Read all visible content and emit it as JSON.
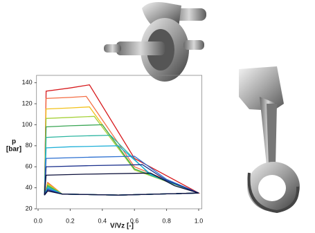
{
  "chart_data": {
    "type": "line",
    "xlabel": "V/Vz [-]",
    "ylabel": [
      "p",
      "[bar]"
    ],
    "xlim": [
      -0.01,
      1.02
    ],
    "ylim": [
      20,
      147
    ],
    "xticks": [
      {
        "value": 0,
        "label": "0.0"
      },
      0.2,
      0.4,
      0.6,
      0.8,
      {
        "value": 1,
        "label": "1.0"
      }
    ],
    "yticks": [
      20,
      40,
      60,
      80,
      100,
      120,
      140
    ],
    "series": [
      {
        "color": "#d7191c",
        "x": [
          0.04,
          0.05,
          0.2,
          0.32,
          0.6,
          1.0,
          0.5,
          0.15,
          0.06,
          0.04
        ],
        "values": [
          33,
          132,
          135,
          138,
          68,
          35,
          33,
          34,
          45,
          33
        ]
      },
      {
        "color": "#f46d43",
        "x": [
          0.04,
          0.05,
          0.2,
          0.3,
          0.6,
          1.0,
          0.5,
          0.15,
          0.06,
          0.04
        ],
        "values": [
          33,
          125,
          126,
          127,
          60,
          35,
          33,
          34,
          45,
          33
        ]
      },
      {
        "color": "#f2c21b",
        "x": [
          0.04,
          0.05,
          0.2,
          0.32,
          0.6,
          1.0,
          0.5,
          0.15,
          0.06,
          0.04
        ],
        "values": [
          33,
          115,
          116,
          117,
          58,
          35,
          33,
          34,
          44,
          33
        ]
      },
      {
        "color": "#a6d13a",
        "x": [
          0.04,
          0.05,
          0.2,
          0.35,
          0.6,
          1.0,
          0.5,
          0.15,
          0.06,
          0.04
        ],
        "values": [
          33,
          106,
          107,
          108,
          57,
          35,
          33,
          34,
          43,
          33
        ]
      },
      {
        "color": "#3aa655",
        "x": [
          0.04,
          0.05,
          0.2,
          0.4,
          0.6,
          1.0,
          0.5,
          0.15,
          0.06,
          0.04
        ],
        "values": [
          33,
          98,
          99,
          100,
          58,
          35,
          33,
          34,
          42,
          33
        ]
      },
      {
        "color": "#2bb5a0",
        "x": [
          0.04,
          0.05,
          0.2,
          0.45,
          0.7,
          1.0,
          0.5,
          0.15,
          0.06,
          0.04
        ],
        "values": [
          33,
          88,
          89,
          90,
          52,
          35,
          33,
          34,
          41,
          33
        ]
      },
      {
        "color": "#1fb0d8",
        "x": [
          0.04,
          0.05,
          0.2,
          0.5,
          0.7,
          1.0,
          0.5,
          0.15,
          0.06,
          0.04
        ],
        "values": [
          33,
          78,
          79,
          80,
          53,
          35,
          33,
          34,
          40,
          33
        ]
      },
      {
        "color": "#2b6fd1",
        "x": [
          0.04,
          0.05,
          0.3,
          0.6,
          0.8,
          1.0,
          0.5,
          0.15,
          0.06,
          0.04
        ],
        "values": [
          33,
          68,
          69,
          70,
          48,
          35,
          33,
          34,
          39,
          33
        ]
      },
      {
        "color": "#1a2f8c",
        "x": [
          0.04,
          0.05,
          0.3,
          0.65,
          0.8,
          1.0,
          0.5,
          0.15,
          0.06,
          0.04
        ],
        "values": [
          33,
          60,
          61,
          62,
          47,
          35,
          33,
          34,
          38,
          33
        ]
      },
      {
        "color": "#0b0f3a",
        "x": [
          0.04,
          0.05,
          0.3,
          0.7,
          0.85,
          1.0,
          0.5,
          0.15,
          0.06,
          0.04
        ],
        "values": [
          33,
          52,
          53,
          54,
          42,
          35,
          33,
          34,
          37,
          33
        ]
      }
    ]
  }
}
